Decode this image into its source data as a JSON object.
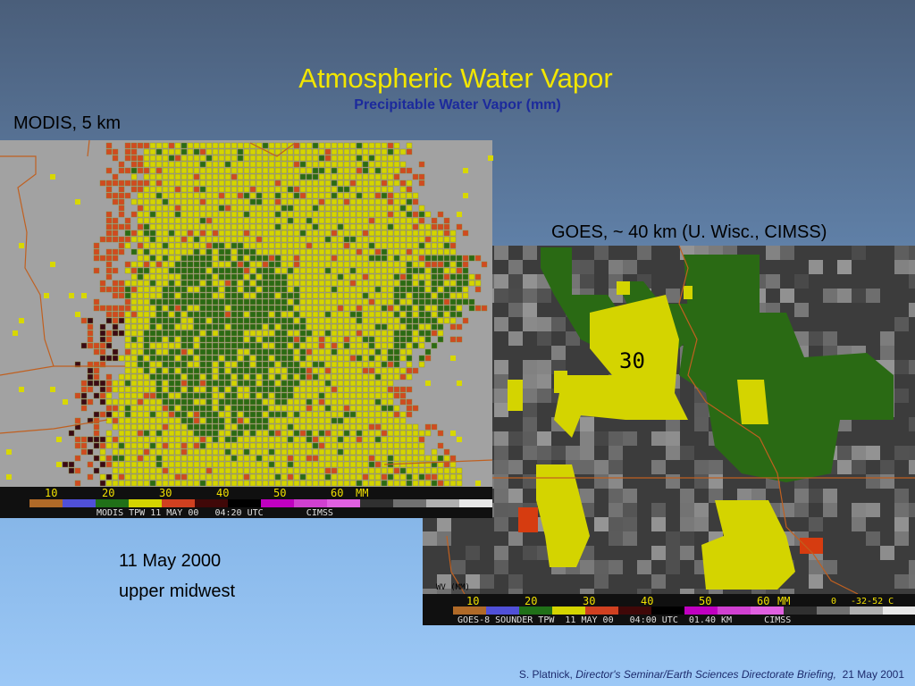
{
  "title": "Atmospheric Water Vapor",
  "subtitle": "Precipitable Water Vapor (mm)",
  "modis": {
    "label": "MODIS, 5 km",
    "colorbar": {
      "labels": [
        10,
        20,
        30,
        40,
        50,
        60
      ],
      "unit": "MM"
    },
    "caption": "MODIS TPW 11 MAY 00   04:20 UTC        CIMSS"
  },
  "goes": {
    "label": "GOES, ~ 40 km (U. Wisc., CIMSS)",
    "annotation": "30",
    "axis_label": "WV (MM)",
    "colorbar": {
      "labels": [
        10,
        20,
        30,
        40,
        50,
        60
      ],
      "unit": "MM",
      "temp_labels": [
        "0",
        "-32-52 C"
      ]
    },
    "caption": "GOES-8 SOUNDER TPW  11 MAY 00   04:00 UTC  01.40 KM      CIMSS"
  },
  "date": "11 May 2000",
  "region": "upper midwest",
  "footer": {
    "author": "S. Platnick,",
    "event": "Director's Seminar/Earth Sciences Directorate Briefing,",
    "date": "21 May 2001"
  }
}
